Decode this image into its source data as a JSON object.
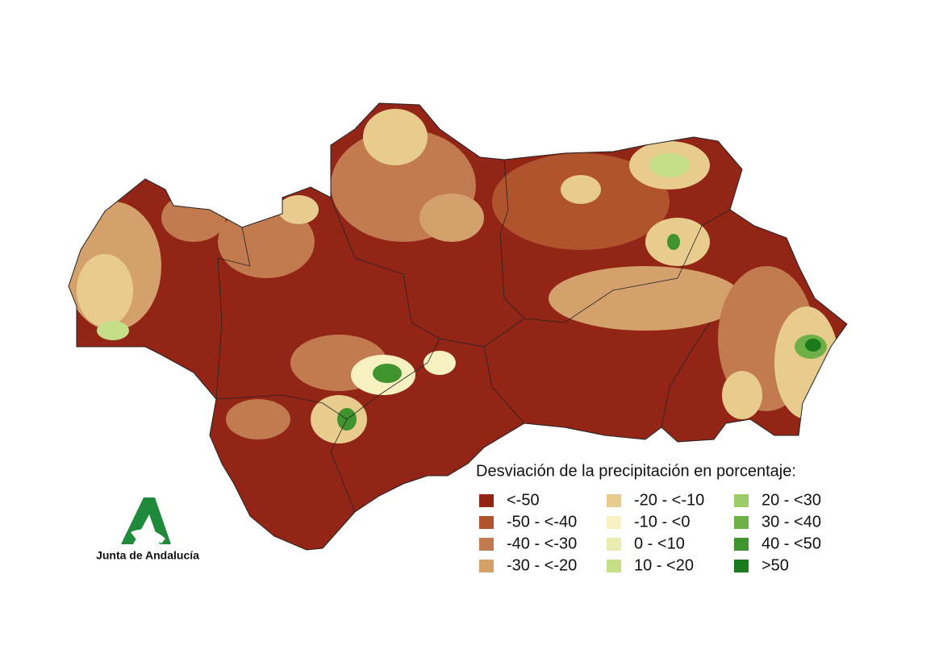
{
  "legend": {
    "title": "Desviación de la precipitación en porcentaje:",
    "items": [
      {
        "label": "<-50",
        "color": "#922516"
      },
      {
        "label": "-50 - <-40",
        "color": "#b0542e"
      },
      {
        "label": "-40 - <-30",
        "color": "#c27a4f"
      },
      {
        "label": "-30 - <-20",
        "color": "#d4a06c"
      },
      {
        "label": "-20 - <-10",
        "color": "#e8cc8e"
      },
      {
        "label": "-10 - <0",
        "color": "#f7f0c0"
      },
      {
        "label": "0 - <10",
        "color": "#e9eeb0"
      },
      {
        "label": "10 - <20",
        "color": "#c5df88"
      },
      {
        "label": "20 - <30",
        "color": "#9dcb66"
      },
      {
        "label": "30 - <40",
        "color": "#6fb046"
      },
      {
        "label": "40 - <50",
        "color": "#3f9430"
      },
      {
        "label": ">50",
        "color": "#1a7a1c"
      }
    ]
  },
  "logo": {
    "text": "Junta de Andalucía"
  }
}
